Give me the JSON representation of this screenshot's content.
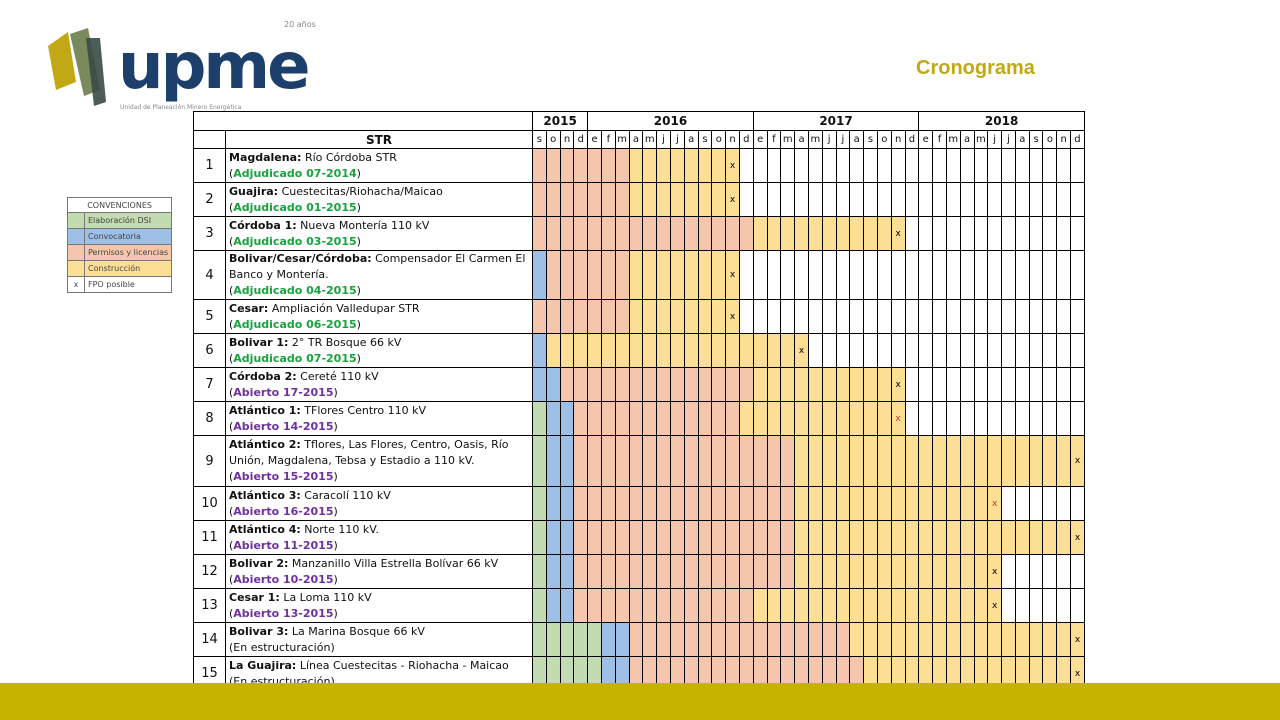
{
  "header": {
    "logo_text": "upme",
    "logo_anniversary": "20 años",
    "logo_subtitle": "Unidad de Planeación Minero Energética",
    "title": "Cronograma"
  },
  "legend": {
    "title": "CONVENCIONES",
    "items": [
      {
        "swatch": "g",
        "label": "Elaboración DSI"
      },
      {
        "swatch": "b",
        "label": "Convocatoria"
      },
      {
        "swatch": "p",
        "label": "Permisos y licencias"
      },
      {
        "swatch": "y",
        "label": "Construcción"
      },
      {
        "swatch": "x",
        "symbol": "x",
        "label": "FPO posible"
      }
    ]
  },
  "table": {
    "header_label": "STR",
    "years": [
      {
        "label": "2015",
        "span": 4
      },
      {
        "label": "2016",
        "span": 12
      },
      {
        "label": "2017",
        "span": 12
      },
      {
        "label": "2018",
        "span": 12
      }
    ],
    "months": [
      "s",
      "o",
      "n",
      "d",
      "e",
      "f",
      "m",
      "a",
      "m",
      "j",
      "j",
      "a",
      "s",
      "o",
      "n",
      "d",
      "e",
      "f",
      "m",
      "a",
      "m",
      "j",
      "j",
      "a",
      "s",
      "o",
      "n",
      "d",
      "e",
      "f",
      "m",
      "a",
      "m",
      "j",
      "j",
      "a",
      "s",
      "o",
      "n",
      "d"
    ],
    "rows": [
      {
        "num": "1",
        "h": 34,
        "title": "Magdalena:",
        "text": "Río Córdoba STR",
        "status": "Adjudicado 07-2014",
        "status_type": "adj",
        "segs": [
          [
            "p",
            7
          ],
          [
            "y",
            8
          ],
          [
            "w",
            25
          ]
        ],
        "x": 14,
        "x_red": false
      },
      {
        "num": "2",
        "h": 34,
        "title": "Guajira:",
        "text": "Cuestecitas/Riohacha/Maicao",
        "status": "Adjudicado 01-2015",
        "status_type": "adj",
        "segs": [
          [
            "p",
            7
          ],
          [
            "y",
            8
          ],
          [
            "w",
            25
          ]
        ],
        "x": 14,
        "x_red": false
      },
      {
        "num": "3",
        "h": 34,
        "title": "Córdoba 1:",
        "text": "Nueva Montería 110 kV",
        "status": "Adjudicado 03-2015",
        "status_type": "adj",
        "segs": [
          [
            "p",
            16
          ],
          [
            "y",
            11
          ],
          [
            "w",
            13
          ]
        ],
        "x": 26,
        "x_red": false
      },
      {
        "num": "4",
        "h": 34,
        "title": "Bolivar/Cesar/Córdoba:",
        "text": "Compensador El Carmen El Banco y Montería.",
        "status": "Adjudicado 04-2015",
        "status_type": "adj",
        "segs": [
          [
            "b",
            1
          ],
          [
            "p",
            6
          ],
          [
            "y",
            8
          ],
          [
            "w",
            25
          ]
        ],
        "x": 14,
        "x_red": false
      },
      {
        "num": "5",
        "h": 34,
        "title": "Cesar:",
        "text": "Ampliación Valledupar STR",
        "status": "Adjudicado 06-2015",
        "status_type": "adj",
        "segs": [
          [
            "p",
            7
          ],
          [
            "y",
            8
          ],
          [
            "w",
            25
          ]
        ],
        "x": 14,
        "x_red": false
      },
      {
        "num": "6",
        "h": 34,
        "title": "Bolivar 1:",
        "text": "2° TR Bosque 66 kV",
        "status": "Adjudicado 07-2015",
        "status_type": "adj",
        "segs": [
          [
            "b",
            1
          ],
          [
            "y",
            19
          ],
          [
            "w",
            20
          ]
        ],
        "x": 19,
        "x_red": false
      },
      {
        "num": "7",
        "h": 34,
        "title": "Córdoba 2:",
        "text": "Cereté 110 kV",
        "status": "Abierto 17-2015",
        "status_type": "abi",
        "segs": [
          [
            "b",
            2
          ],
          [
            "p",
            14
          ],
          [
            "y",
            11
          ],
          [
            "w",
            13
          ]
        ],
        "x": 26,
        "x_red": false
      },
      {
        "num": "8",
        "h": 34,
        "title": "Atlántico 1:",
        "text": "TFlores Centro 110 kV",
        "status": "Abierto 14-2015",
        "status_type": "abi",
        "segs": [
          [
            "g",
            1
          ],
          [
            "b",
            2
          ],
          [
            "p",
            12
          ],
          [
            "y",
            12
          ],
          [
            "w",
            13
          ]
        ],
        "x": 26,
        "x_red": true
      },
      {
        "num": "9",
        "h": 51,
        "title": "Atlántico 2:",
        "text": "Tflores, Las Flores, Centro, Oasis, Río Unión, Magdalena, Tebsa y Estadio a 110 kV.",
        "status": "Abierto 15-2015",
        "status_type": "abi",
        "segs": [
          [
            "g",
            1
          ],
          [
            "b",
            2
          ],
          [
            "p",
            16
          ],
          [
            "y",
            21
          ]
        ],
        "x": 39,
        "x_red": false
      },
      {
        "num": "10",
        "h": 34,
        "title": "Atlántico 3:",
        "text": "Caracolí 110 kV",
        "status": "Abierto 16-2015",
        "status_type": "abi",
        "segs": [
          [
            "g",
            1
          ],
          [
            "b",
            2
          ],
          [
            "p",
            16
          ],
          [
            "y",
            15
          ],
          [
            "w",
            6
          ]
        ],
        "x": 33,
        "x_red": true
      },
      {
        "num": "11",
        "h": 34,
        "title": "Atlántico 4:",
        "text": "Norte 110 kV.",
        "status": "Abierto 11-2015",
        "status_type": "abi",
        "segs": [
          [
            "g",
            1
          ],
          [
            "b",
            2
          ],
          [
            "p",
            16
          ],
          [
            "y",
            21
          ]
        ],
        "x": 39,
        "x_red": false
      },
      {
        "num": "12",
        "h": 34,
        "title": "Bolivar 2:",
        "text": "Manzanillo Villa Estrella Bolívar 66 kV",
        "status": "Abierto 10-2015",
        "status_type": "abi",
        "segs": [
          [
            "g",
            1
          ],
          [
            "b",
            2
          ],
          [
            "p",
            16
          ],
          [
            "y",
            15
          ],
          [
            "w",
            6
          ]
        ],
        "x": 33,
        "x_red": false
      },
      {
        "num": "13",
        "h": 34,
        "title": "Cesar 1:",
        "text": "La Loma 110 kV",
        "status": "Abierto 13-2015",
        "status_type": "abi",
        "segs": [
          [
            "g",
            1
          ],
          [
            "b",
            2
          ],
          [
            "p",
            13
          ],
          [
            "y",
            18
          ],
          [
            "w",
            6
          ]
        ],
        "x": 33,
        "x_red": false
      },
      {
        "num": "14",
        "h": 34,
        "title": "Bolivar 3:",
        "text": "La Marina Bosque 66 kV",
        "status": "En estructuración",
        "status_type": "plain",
        "segs": [
          [
            "g",
            5
          ],
          [
            "b",
            2
          ],
          [
            "p",
            16
          ],
          [
            "y",
            17
          ]
        ],
        "x": 39,
        "x_red": false
      },
      {
        "num": "15",
        "h": 34,
        "title": "La Guajira:",
        "text": "Línea Cuestecitas - Riohacha - Maicao",
        "status": "En estructuración",
        "status_type": "plain",
        "segs": [
          [
            "g",
            5
          ],
          [
            "b",
            2
          ],
          [
            "p",
            17
          ],
          [
            "y",
            16
          ]
        ],
        "x": 39,
        "x_red": false
      }
    ]
  }
}
